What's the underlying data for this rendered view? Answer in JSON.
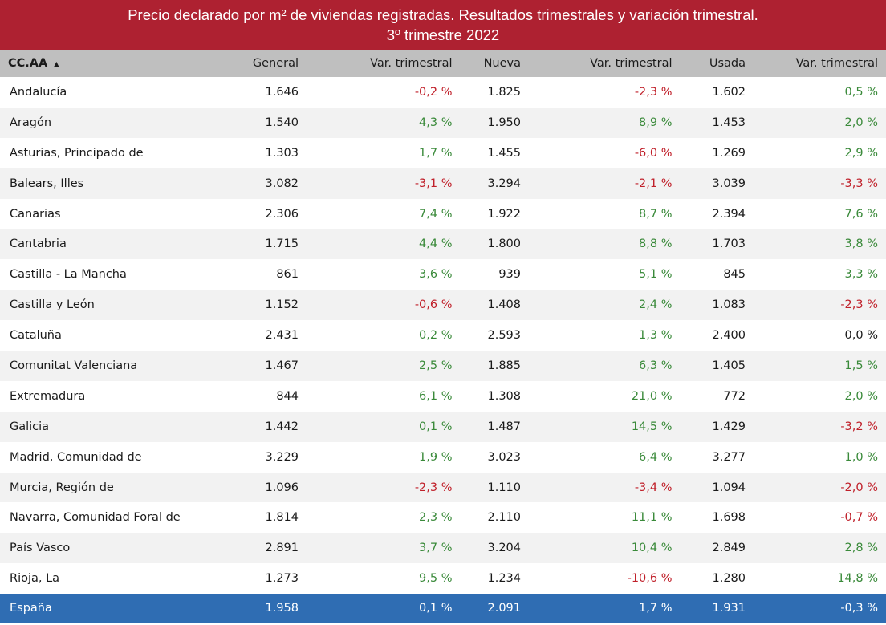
{
  "title": {
    "line1": "Precio declarado por m² de viviendas registradas. Resultados trimestrales y variación trimestral.",
    "line2": "3º trimestre 2022"
  },
  "columns": [
    "CC.AA",
    "General",
    "Var. trimestral",
    "Nueva",
    "Var. trimestral",
    "Usada",
    "Var. trimestral"
  ],
  "sort_icon": "sort-ascending-icon",
  "colors": {
    "header_bg": "#ae2131",
    "total_bg": "#2f6db3",
    "negative": "#c0202a",
    "positive": "#3a8a3a"
  },
  "rows": [
    {
      "name": "Andalucía",
      "general": "1.646",
      "var_general": "-0,2 %",
      "nueva": "1.825",
      "var_nueva": "-2,3 %",
      "usada": "1.602",
      "var_usada": "0,5 %"
    },
    {
      "name": "Aragón",
      "general": "1.540",
      "var_general": "4,3 %",
      "nueva": "1.950",
      "var_nueva": "8,9 %",
      "usada": "1.453",
      "var_usada": "2,0 %"
    },
    {
      "name": "Asturias, Principado de",
      "general": "1.303",
      "var_general": "1,7 %",
      "nueva": "1.455",
      "var_nueva": "-6,0 %",
      "usada": "1.269",
      "var_usada": "2,9 %"
    },
    {
      "name": "Balears, Illes",
      "general": "3.082",
      "var_general": "-3,1 %",
      "nueva": "3.294",
      "var_nueva": "-2,1 %",
      "usada": "3.039",
      "var_usada": "-3,3 %"
    },
    {
      "name": "Canarias",
      "general": "2.306",
      "var_general": "7,4 %",
      "nueva": "1.922",
      "var_nueva": "8,7 %",
      "usada": "2.394",
      "var_usada": "7,6 %"
    },
    {
      "name": "Cantabria",
      "general": "1.715",
      "var_general": "4,4 %",
      "nueva": "1.800",
      "var_nueva": "8,8 %",
      "usada": "1.703",
      "var_usada": "3,8 %"
    },
    {
      "name": "Castilla - La Mancha",
      "general": "861",
      "var_general": "3,6 %",
      "nueva": "939",
      "var_nueva": "5,1 %",
      "usada": "845",
      "var_usada": "3,3 %"
    },
    {
      "name": "Castilla y León",
      "general": "1.152",
      "var_general": "-0,6 %",
      "nueva": "1.408",
      "var_nueva": "2,4 %",
      "usada": "1.083",
      "var_usada": "-2,3 %"
    },
    {
      "name": "Cataluña",
      "general": "2.431",
      "var_general": "0,2 %",
      "nueva": "2.593",
      "var_nueva": "1,3 %",
      "usada": "2.400",
      "var_usada": "0,0 %"
    },
    {
      "name": "Comunitat Valenciana",
      "general": "1.467",
      "var_general": "2,5 %",
      "nueva": "1.885",
      "var_nueva": "6,3 %",
      "usada": "1.405",
      "var_usada": "1,5 %"
    },
    {
      "name": "Extremadura",
      "general": "844",
      "var_general": "6,1 %",
      "nueva": "1.308",
      "var_nueva": "21,0 %",
      "usada": "772",
      "var_usada": "2,0 %"
    },
    {
      "name": "Galicia",
      "general": "1.442",
      "var_general": "0,1 %",
      "nueva": "1.487",
      "var_nueva": "14,5 %",
      "usada": "1.429",
      "var_usada": "-3,2 %"
    },
    {
      "name": "Madrid, Comunidad de",
      "general": "3.229",
      "var_general": "1,9 %",
      "nueva": "3.023",
      "var_nueva": "6,4 %",
      "usada": "3.277",
      "var_usada": "1,0 %"
    },
    {
      "name": "Murcia, Región de",
      "general": "1.096",
      "var_general": "-2,3 %",
      "nueva": "1.110",
      "var_nueva": "-3,4 %",
      "usada": "1.094",
      "var_usada": "-2,0 %"
    },
    {
      "name": "Navarra, Comunidad Foral de",
      "general": "1.814",
      "var_general": "2,3 %",
      "nueva": "2.110",
      "var_nueva": "11,1 %",
      "usada": "1.698",
      "var_usada": "-0,7 %"
    },
    {
      "name": "País Vasco",
      "general": "2.891",
      "var_general": "3,7 %",
      "nueva": "3.204",
      "var_nueva": "10,4 %",
      "usada": "2.849",
      "var_usada": "2,8 %"
    },
    {
      "name": "Rioja, La",
      "general": "1.273",
      "var_general": "9,5 %",
      "nueva": "1.234",
      "var_nueva": "-10,6 %",
      "usada": "1.280",
      "var_usada": "14,8 %"
    }
  ],
  "total": {
    "name": "España",
    "general": "1.958",
    "var_general": "0,1 %",
    "nueva": "2.091",
    "var_nueva": "1,7 %",
    "usada": "1.931",
    "var_usada": "-0,3 %"
  }
}
